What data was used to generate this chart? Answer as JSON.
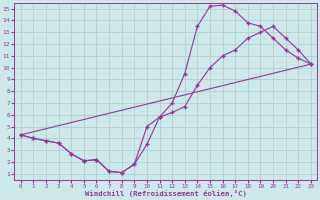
{
  "xlabel": "Windchill (Refroidissement éolien,°C)",
  "bg_color": "#cde8e8",
  "grid_color": "#aacccc",
  "line_color": "#993399",
  "xlim": [
    -0.5,
    23.5
  ],
  "ylim": [
    0.5,
    15.5
  ],
  "xticks": [
    0,
    1,
    2,
    3,
    4,
    5,
    6,
    7,
    8,
    9,
    10,
    11,
    12,
    13,
    14,
    15,
    16,
    17,
    18,
    19,
    20,
    21,
    22,
    23
  ],
  "yticks": [
    1,
    2,
    3,
    4,
    5,
    6,
    7,
    8,
    9,
    10,
    11,
    12,
    13,
    14,
    15
  ],
  "line1_x": [
    0,
    1,
    2,
    3,
    4,
    5,
    6,
    7,
    8,
    9,
    10,
    11,
    12,
    13,
    14,
    15,
    16,
    17,
    18,
    19,
    20,
    21,
    22,
    23
  ],
  "line1_y": [
    4.3,
    4.0,
    3.8,
    3.6,
    2.7,
    2.1,
    2.2,
    1.2,
    1.1,
    1.8,
    3.5,
    5.8,
    7.0,
    9.5,
    13.5,
    15.2,
    15.3,
    14.8,
    13.8,
    13.5,
    12.5,
    11.5,
    10.8,
    10.3
  ],
  "line2_x": [
    0,
    1,
    2,
    3,
    4,
    5,
    6,
    7,
    8,
    9,
    10,
    11,
    12,
    13,
    14,
    15,
    16,
    17,
    18,
    19,
    20,
    21,
    22,
    23
  ],
  "line2_y": [
    4.3,
    4.0,
    3.8,
    3.6,
    2.7,
    2.1,
    2.2,
    1.2,
    1.1,
    1.8,
    5.0,
    5.8,
    6.2,
    6.7,
    8.5,
    10.0,
    11.0,
    11.5,
    12.5,
    13.0,
    13.5,
    12.5,
    11.5,
    10.3
  ],
  "line3_x": [
    0,
    23
  ],
  "line3_y": [
    4.3,
    10.3
  ]
}
